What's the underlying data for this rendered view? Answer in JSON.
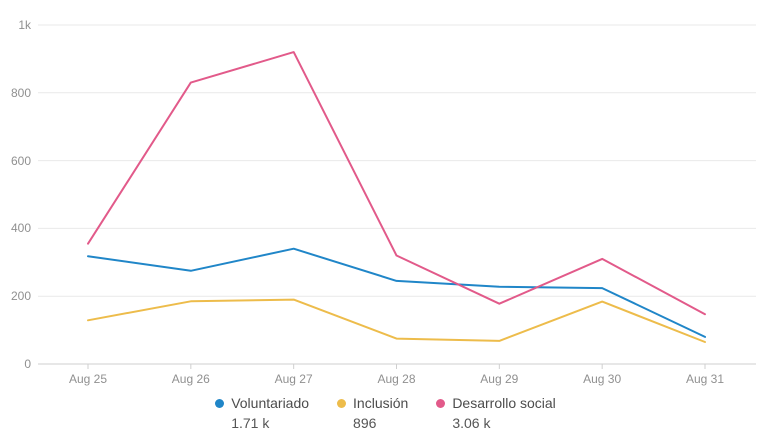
{
  "chart_data": {
    "type": "line",
    "title": "",
    "x": [
      "Aug 25",
      "Aug 26",
      "Aug 27",
      "Aug 28",
      "Aug 29",
      "Aug 30",
      "Aug 31"
    ],
    "series": [
      {
        "name": "Voluntariado",
        "total": "1.71 k",
        "color": "#2086c8",
        "values": [
          318,
          275,
          340,
          245,
          228,
          224,
          80
        ]
      },
      {
        "name": "Inclusión",
        "total": "896",
        "color": "#edbc4b",
        "values": [
          129,
          185,
          190,
          75,
          68,
          184,
          65
        ]
      },
      {
        "name": "Desarrollo social",
        "total": "3.06 k",
        "color": "#e25a8a",
        "values": [
          355,
          830,
          920,
          320,
          178,
          310,
          147
        ]
      }
    ],
    "ylim": [
      0,
      1000
    ],
    "yticks": [
      {
        "value": 0,
        "label": "0"
      },
      {
        "value": 200,
        "label": "200"
      },
      {
        "value": 400,
        "label": "400"
      },
      {
        "value": 600,
        "label": "600"
      },
      {
        "value": 800,
        "label": "800"
      },
      {
        "value": 1000,
        "label": "1k"
      }
    ],
    "grid": true,
    "legend_position": "bottom",
    "colors": {
      "grid_line": "#e9e9e9",
      "axis_line": "#cfcfcf",
      "tick_mark": "#cfcfcf",
      "axis_label": "#909090",
      "legend_text": "#4c4c4c",
      "background": "#ffffff"
    }
  }
}
